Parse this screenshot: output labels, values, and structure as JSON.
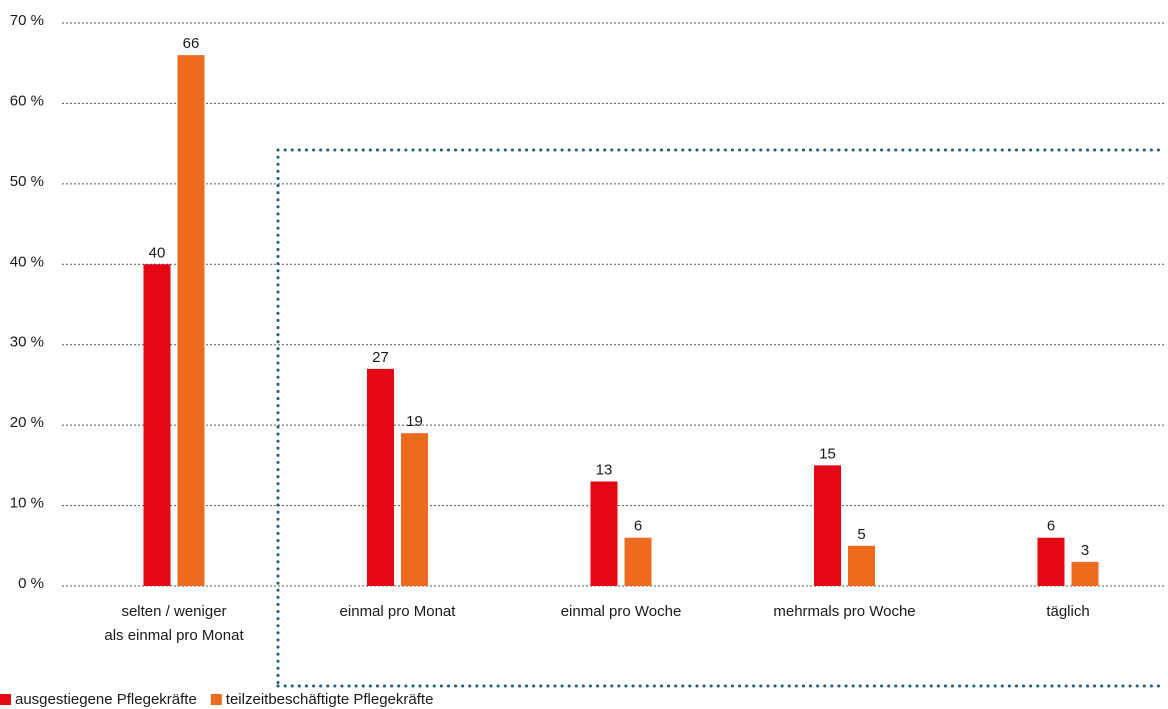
{
  "chart_data": {
    "type": "bar",
    "categories": [
      "selten / weniger\nals einmal pro Monat",
      "einmal pro Monat",
      "einmal pro Woche",
      "mehrmals pro Woche",
      "täglich"
    ],
    "series": [
      {
        "name": "ausgestiegene Pflegekräfte",
        "color": "#e30613",
        "values": [
          40,
          27,
          13,
          15,
          6
        ]
      },
      {
        "name": "teilzeitbeschäftigte Pflegekräfte",
        "color": "#ec6b1f",
        "values": [
          66,
          19,
          6,
          5,
          3
        ]
      }
    ],
    "ylim": [
      0,
      70
    ],
    "yticks": [
      {
        "value": 0,
        "label": "0 %"
      },
      {
        "value": 10,
        "label": "10 %"
      },
      {
        "value": 20,
        "label": "20 %"
      },
      {
        "value": 30,
        "label": "30 %"
      },
      {
        "value": 40,
        "label": "40 %"
      },
      {
        "value": 50,
        "label": "50 %"
      },
      {
        "value": 60,
        "label": "60 %"
      },
      {
        "value": 70,
        "label": "70 %"
      }
    ],
    "grid": true,
    "legend": "bottom-left"
  }
}
